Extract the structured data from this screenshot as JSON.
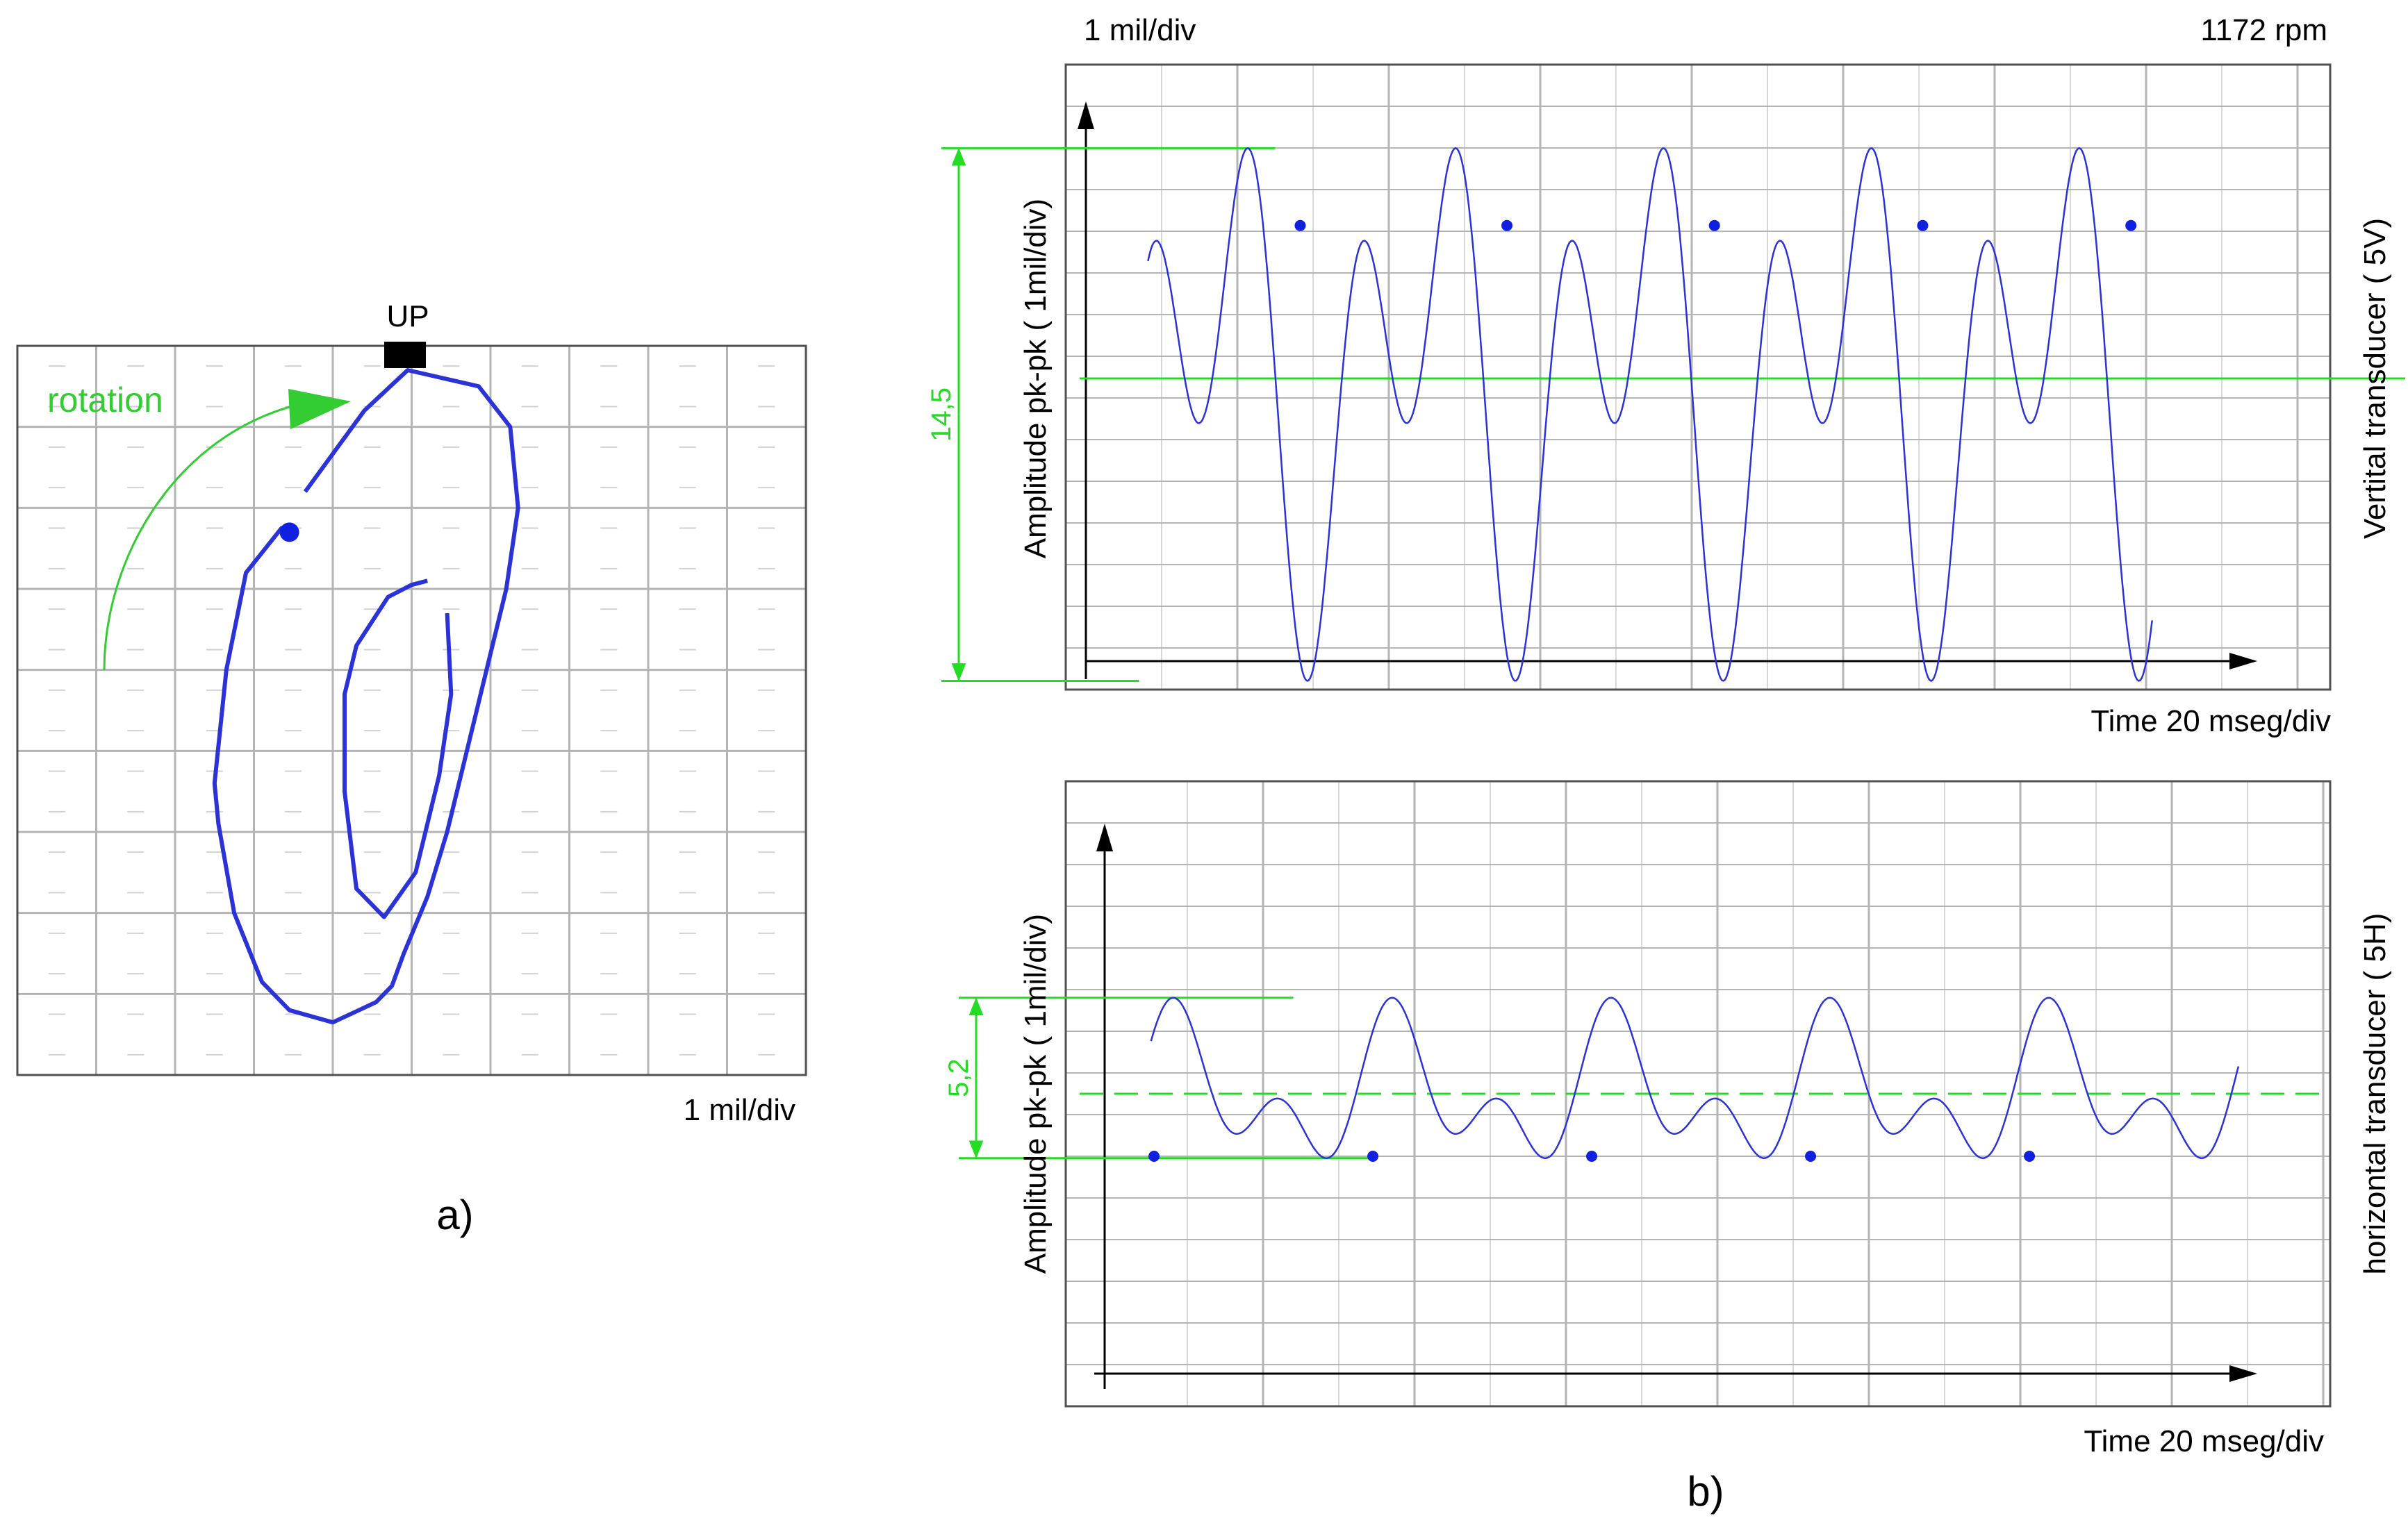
{
  "colors": {
    "trace": "#2b33d6",
    "marker": "#1020e0",
    "grid": "#b4b4b4",
    "frame": "#505050",
    "annotation": "#22dd22",
    "rotation_arrow": "#33cc33",
    "up_marker": "#000000"
  },
  "panel_a": {
    "caption": "a)",
    "scale_label": "1 mil/div",
    "up_label": "UP",
    "rotation_label": "rotation",
    "chart_data": {
      "type": "scatter",
      "title": "",
      "xlabel": "",
      "ylabel": "",
      "grid": true,
      "xlim": [
        -5,
        5
      ],
      "ylim": [
        -9,
        0
      ],
      "orbit": {
        "x": [
          -1.35,
          -0.6,
          -0.05,
          0.85,
          1.25,
          1.35,
          1.2,
          0.95,
          0.7,
          0.45,
          0.2,
          -0.1,
          -0.25,
          -0.45,
          -1.0,
          -1.55,
          -1.9,
          -2.25,
          -2.45,
          -2.5,
          -2.35,
          -2.1,
          -1.65,
          -1.55
        ],
        "y": [
          -1.8,
          -0.8,
          -0.3,
          -0.5,
          -1.0,
          -2.0,
          -3.0,
          -4.0,
          -5.0,
          -6.0,
          -6.8,
          -7.5,
          -7.9,
          -8.1,
          -8.35,
          -8.2,
          -7.85,
          -7.0,
          -5.9,
          -5.4,
          -4.0,
          -2.8,
          -2.25,
          -2.3
        ]
      },
      "inner_loop": {
        "x": [
          0.2,
          0.0,
          -0.3,
          -0.7,
          -0.85,
          -0.85,
          -0.7,
          -0.35,
          0.05,
          0.35,
          0.5,
          0.45
        ],
        "y": [
          -2.9,
          -2.95,
          -3.1,
          -3.7,
          -4.3,
          -5.5,
          -6.7,
          -7.05,
          -6.5,
          -5.3,
          -4.3,
          -3.3
        ]
      },
      "keyphasor_marker": {
        "x": -1.55,
        "y": -2.3
      }
    }
  },
  "panel_b": {
    "caption": "b)",
    "top_left_label": "1 mil/div",
    "top_right_label": "1172 rpm",
    "charts": [
      {
        "id": "vertical",
        "chart_data": {
          "type": "line",
          "title": "",
          "xlabel": "Time 20 mseg/div",
          "ylabel": "Amplitude pk-pk ( 1mil/div)",
          "side_label": "Vertital transducer ( 5V)",
          "pkpk_label": "14,5",
          "grid": true,
          "xlim": [
            0,
            165
          ],
          "ylim": [
            -8,
            8
          ],
          "cycle_period_ms": 27.45,
          "start_ms": 8.2,
          "end_ms": 141.0,
          "wave": {
            "a1": 4.0,
            "a2": 5.0,
            "p1": -0.4,
            "p2": 1.47
          },
          "reference_level": 0,
          "markers": [
            {
              "x": 28.3,
              "y": 4.45
            },
            {
              "x": 55.6,
              "y": 4.45
            },
            {
              "x": 83.0,
              "y": 4.45
            },
            {
              "x": 110.5,
              "y": 4.45
            },
            {
              "x": 138.0,
              "y": 4.45
            }
          ]
        }
      },
      {
        "id": "horizontal",
        "chart_data": {
          "type": "line",
          "title": "",
          "xlabel": "Time 20 mseg/div",
          "ylabel": "Amplitude pk-pk ( 1mil/div)",
          "side_label": "horizontal transducer ( 5H)",
          "pkpk_label": "5,2",
          "grid": true,
          "xlim": [
            0,
            165
          ],
          "ylim": [
            -8,
            8
          ],
          "cycle_period_ms": 28.9,
          "start_ms": 5.2,
          "end_ms": 149.0,
          "wave": {
            "a1": 1.5,
            "a2": 1.3,
            "p1": 0.74,
            "p2": 0.4
          },
          "reference_level": 0,
          "markers": [
            {
              "x": 5.6,
              "y": -1.8
            },
            {
              "x": 34.5,
              "y": -1.8
            },
            {
              "x": 63.4,
              "y": -1.8
            },
            {
              "x": 92.3,
              "y": -1.8
            },
            {
              "x": 121.2,
              "y": -1.8
            }
          ]
        }
      }
    ]
  }
}
